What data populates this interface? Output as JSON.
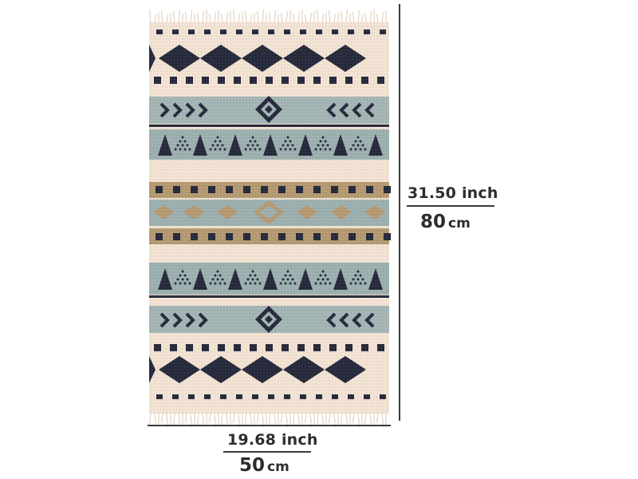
{
  "product": {
    "name": "geometric-pattern-woven-rug"
  },
  "palette": {
    "cream": "#f2e3d3",
    "navy": "#262a3b",
    "sage": "#9db0b0",
    "tan": "#b59a72",
    "fringe": "#e9dccd",
    "dimension_line": "#3a3a3a",
    "text": "#2d2d2d"
  },
  "dimensions": {
    "height": {
      "inch_value": "31.50",
      "inch_unit": "inch",
      "cm_value": "80",
      "cm_unit": "cm"
    },
    "width": {
      "inch_value": "19.68",
      "inch_unit": "inch",
      "cm_value": "50",
      "cm_unit": "cm"
    }
  }
}
